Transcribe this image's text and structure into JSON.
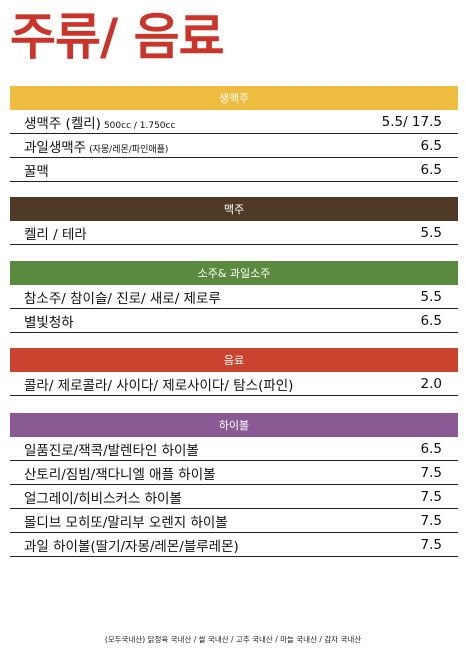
{
  "title": "주류/ 음료",
  "colors": {
    "title": "#c9352b",
    "yellow": "#eebc3f",
    "brown": "#4e3a25",
    "green": "#5a8a3e",
    "red": "#c9432e",
    "purple": "#8a5a94"
  },
  "sections": [
    {
      "header": "생맥주",
      "items": [
        {
          "name": "생맥주 (켈리)",
          "note": "500cc / 1.750cc",
          "price": "5.5/ 17.5"
        },
        {
          "name": "과일생맥주",
          "note": "(자몽/레몬/파인애플)",
          "price": "6.5"
        },
        {
          "name": "꿀맥",
          "note": "",
          "price": "6.5"
        }
      ]
    },
    {
      "header": "맥주",
      "items": [
        {
          "name": "켈리 / 테라",
          "note": "",
          "price": "5.5"
        }
      ]
    },
    {
      "header": "소주& 과일소주",
      "items": [
        {
          "name": "참소주/ 참이슬/ 진로/ 새로/ 제로루",
          "note": "",
          "price": "5.5"
        },
        {
          "name": "별빛청하",
          "note": "",
          "price": "6.5"
        }
      ]
    },
    {
      "header": "음료",
      "items": [
        {
          "name": "콜라/ 제로콜라/ 사이다/ 제로사이다/ 탐스(파인)",
          "note": "",
          "price": "2.0"
        }
      ]
    },
    {
      "header": "하이볼",
      "items": [
        {
          "name": "일품진로/잭콕/발렌타인 하이볼",
          "note": "",
          "price": "6.5"
        },
        {
          "name": "산토리/짐빔/잭다니엘 애플 하이볼",
          "note": "",
          "price": "7.5"
        },
        {
          "name": "얼그레이/히비스커스 하이볼",
          "note": "",
          "price": "7.5"
        },
        {
          "name": "몰디브 모히또/말리부 오렌지 하이볼",
          "note": "",
          "price": "7.5"
        },
        {
          "name": "과일 하이볼(딸기/자몽/레몬/블루레몬)",
          "note": "",
          "price": "7.5"
        }
      ]
    }
  ],
  "footer": "(모두국내산) 닭정육 국내산 / 쌀 국내산 / 고추 국내산 / 마늘 국내산 / 감자 국내산"
}
